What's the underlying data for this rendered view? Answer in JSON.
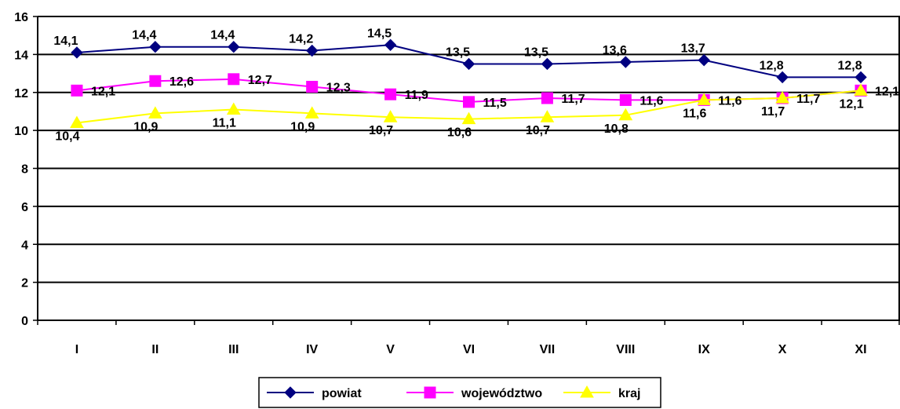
{
  "chart_data": {
    "type": "line",
    "title": "",
    "xlabel": "",
    "ylabel": "",
    "categories": [
      "I",
      "II",
      "III",
      "IV",
      "V",
      "VI",
      "VII",
      "VIII",
      "IX",
      "X",
      "XI"
    ],
    "ylim": [
      0,
      16
    ],
    "yticks": [
      0,
      2,
      4,
      6,
      8,
      10,
      12,
      14,
      16
    ],
    "grid": true,
    "legend_position": "bottom",
    "series": [
      {
        "name": "powiat",
        "color": "#000080",
        "marker": "diamond",
        "values": [
          14.1,
          14.4,
          14.4,
          14.2,
          14.5,
          13.5,
          13.5,
          13.6,
          13.7,
          12.8,
          12.8
        ],
        "labels": [
          "14,1",
          "14,4",
          "14,4",
          "14,2",
          "14,5",
          "13,5",
          "13,5",
          "13,6",
          "13,7",
          "12,8",
          "12,8"
        ]
      },
      {
        "name": "województwo",
        "color": "#FF00FF",
        "marker": "square",
        "values": [
          12.1,
          12.6,
          12.7,
          12.3,
          11.9,
          11.5,
          11.7,
          11.6,
          11.6,
          11.7,
          12.1
        ],
        "labels": [
          "12,1",
          "12,6",
          "12,7",
          "12,3",
          "11,9",
          "11,5",
          "11,7",
          "11,6",
          "11,6",
          "11,7",
          "12,1"
        ]
      },
      {
        "name": "kraj",
        "color": "#FFFF00",
        "marker": "triangle",
        "values": [
          10.4,
          10.9,
          11.1,
          10.9,
          10.7,
          10.6,
          10.7,
          10.8,
          11.6,
          11.7,
          12.1
        ],
        "labels": [
          "10,4",
          "10,9",
          "11,1",
          "10,9",
          "10,7",
          "10,6",
          "10,7",
          "10,8",
          "11,6",
          "11,7",
          "12,1"
        ]
      }
    ]
  }
}
